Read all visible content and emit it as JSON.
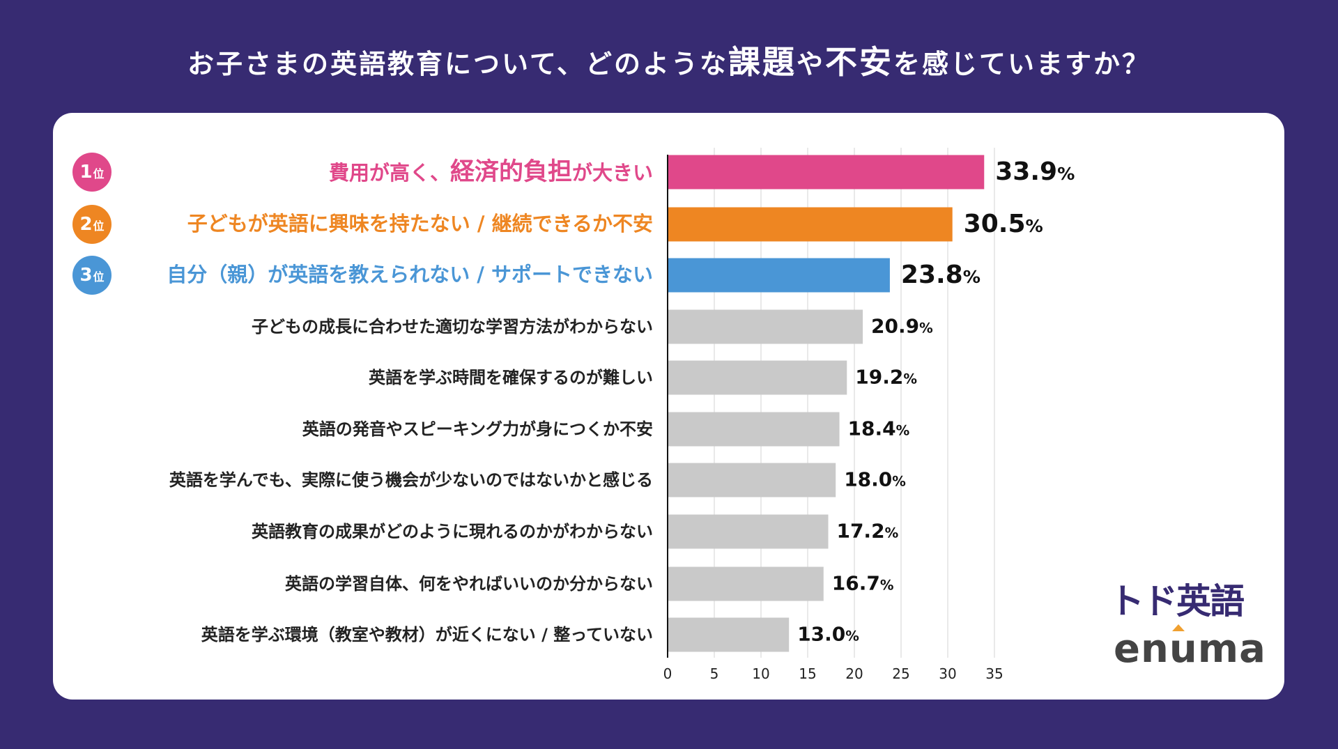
{
  "title": {
    "parts": [
      {
        "text": "お子さまの英語教育について、どのような",
        "em": false
      },
      {
        "text": "課題",
        "em": true
      },
      {
        "text": "や",
        "em": false
      },
      {
        "text": "不安",
        "em": true
      },
      {
        "text": "を感じていますか？",
        "em": false
      }
    ]
  },
  "colors": {
    "background": "#372b72",
    "rank1": "#e0488a",
    "rank2": "#ee8622",
    "rank3": "#4a96d6",
    "other": "#c9c9c9"
  },
  "logos": {
    "todo": "トド英語",
    "enuma": "enuma"
  },
  "chart_data": {
    "type": "bar",
    "orientation": "horizontal",
    "xlim": [
      0,
      35
    ],
    "xticks": [
      0,
      5,
      10,
      15,
      20,
      25,
      30,
      35
    ],
    "grid": true,
    "value_suffix": "%",
    "ranks": [
      {
        "number": "1",
        "suffix": "位"
      },
      {
        "number": "2",
        "suffix": "位"
      },
      {
        "number": "3",
        "suffix": "位"
      }
    ],
    "categories": [
      {
        "parts": [
          {
            "text": "費用が高く、",
            "em": false
          },
          {
            "text": "経済的負担",
            "em": true
          },
          {
            "text": "が大きい",
            "em": false
          }
        ]
      },
      {
        "parts": [
          {
            "text": "子どもが英語に興味を持たない / 継続できるか不安",
            "em": false
          }
        ]
      },
      {
        "parts": [
          {
            "text": "自分（親）が英語を教えられない / サポートできない",
            "em": false
          }
        ]
      },
      {
        "parts": [
          {
            "text": "子どもの成長に合わせた適切な学習方法がわからない",
            "em": false
          }
        ]
      },
      {
        "parts": [
          {
            "text": "英語を学ぶ時間を確保するのが難しい",
            "em": false
          }
        ]
      },
      {
        "parts": [
          {
            "text": "英語の発音やスピーキング力が身につくか不安",
            "em": false
          }
        ]
      },
      {
        "parts": [
          {
            "text": "英語を学んでも、実際に使う機会が少ないのではないかと感じる",
            "em": false
          }
        ]
      },
      {
        "parts": [
          {
            "text": "英語教育の成果がどのように現れるのかがわからない",
            "em": false
          }
        ]
      },
      {
        "parts": [
          {
            "text": "英語の学習自体、何をやればいいのか分からない",
            "em": false
          }
        ]
      },
      {
        "parts": [
          {
            "text": "英語を学ぶ環境（教室や教材）が近くにない / 整っていない",
            "em": false
          }
        ]
      }
    ],
    "values": [
      33.9,
      30.5,
      23.8,
      20.9,
      19.2,
      18.4,
      18.0,
      17.2,
      16.7,
      13.0
    ]
  }
}
